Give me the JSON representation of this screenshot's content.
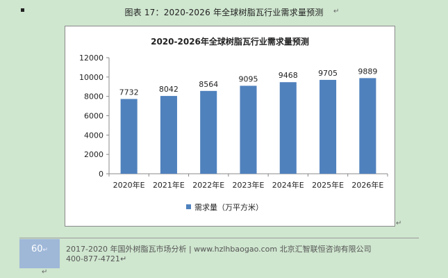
{
  "caption": "图表  17：2020-2026 年全球树脂瓦行业需求量预测",
  "chart_data": {
    "type": "bar",
    "title": "2020-2026年全球树脂瓦行业需求量预测",
    "categories": [
      "2020年E",
      "2021年E",
      "2022年E",
      "2023年E",
      "2024年E",
      "2025年E",
      "2026年E"
    ],
    "series": [
      {
        "name": "需求量（万平方米）",
        "values": [
          7732,
          8042,
          8564,
          9095,
          9468,
          9705,
          9889
        ]
      }
    ],
    "ylim": [
      0,
      12000
    ],
    "yticks": [
      0,
      2000,
      4000,
      6000,
      8000,
      10000,
      12000
    ],
    "grid": false,
    "legend": "bottom",
    "bar_color": "#4f81bd"
  },
  "footer": {
    "page_number": "60",
    "line1": "2017-2020 年国外树脂瓦市场分析 | www.hzlhbaogao.com 北京汇智联恒咨询有限公司",
    "line2": "400-877-4721"
  },
  "pilcrow": "↵"
}
